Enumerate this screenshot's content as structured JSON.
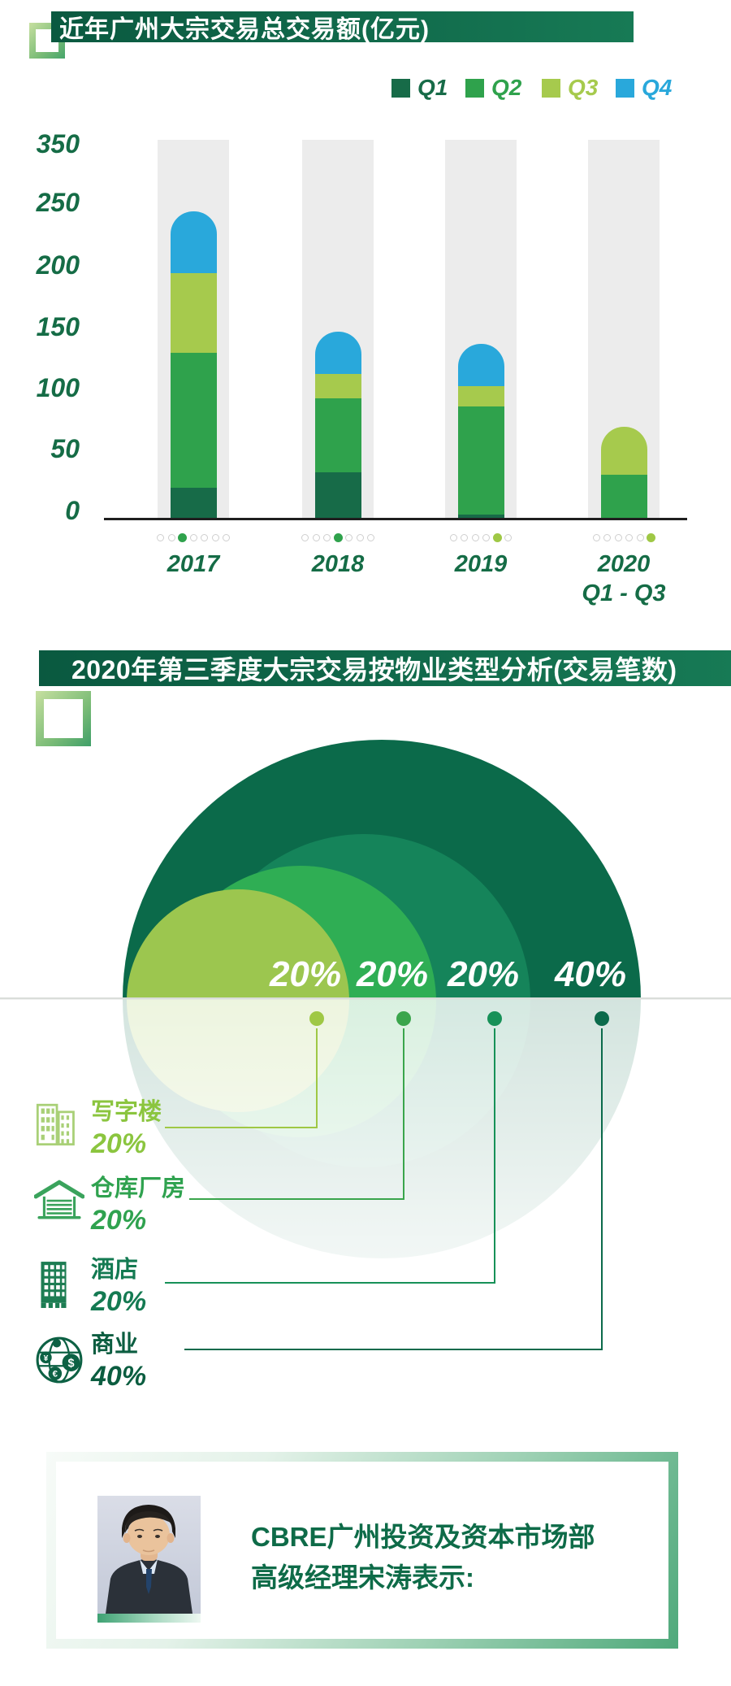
{
  "accent": {
    "dark_green": "#156c46",
    "banner_green": "#0f6a4a",
    "axis_black": "#1f1f1f",
    "column_gray": "#ececec"
  },
  "chart_data": [
    {
      "type": "bar",
      "stacked": true,
      "title": "近年广州大宗交易总交易额(亿元)",
      "ylabel": "亿元",
      "ylim": [
        0,
        350
      ],
      "yticks": [
        "350",
        "250",
        "200",
        "150",
        "100",
        "50",
        "0"
      ],
      "categories": [
        "2017",
        "2018",
        "2019",
        "2020"
      ],
      "category_sublabels": [
        "",
        "",
        "",
        "Q1 - Q3"
      ],
      "legend_position": "top-right",
      "series": [
        {
          "name": "Q1",
          "color": "#176b48",
          "values": [
            25,
            38,
            3,
            0
          ]
        },
        {
          "name": "Q2",
          "color": "#2fa24c",
          "values": [
            110,
            60,
            88,
            36
          ]
        },
        {
          "name": "Q3",
          "color": "#a6ca4d",
          "values": [
            65,
            20,
            17,
            39
          ]
        },
        {
          "name": "Q4",
          "color": "#29a8db",
          "values": [
            50,
            34,
            34,
            0
          ]
        }
      ],
      "totals_approx": [
        250,
        152,
        142,
        75
      ],
      "marker_dots": [
        {
          "count": 7,
          "filled": 3,
          "color": "#2fa24c"
        },
        {
          "count": 7,
          "filled": 4,
          "color": "#2fa24c"
        },
        {
          "count": 6,
          "filled": 5,
          "color": "#9fc845"
        },
        {
          "count": 6,
          "filled": 6,
          "color": "#9fc845"
        }
      ]
    },
    {
      "type": "concentric-circles",
      "title": "2020年第三季度大宗交易按物业类型分析(交易笔数)",
      "categories": [
        {
          "label": "写字楼",
          "value_pct": 20,
          "pct_label": "20%",
          "color": "#8bc53f",
          "dot_color": "#9fc845",
          "ring_color": "#9cc64f"
        },
        {
          "label": "仓库厂房",
          "value_pct": 20,
          "pct_label": "20%",
          "color": "#2fa24f",
          "dot_color": "#3aa54c",
          "ring_color": "#2fae54"
        },
        {
          "label": "酒店",
          "value_pct": 20,
          "pct_label": "20%",
          "color": "#147a52",
          "dot_color": "#179158",
          "ring_color": "#15845a"
        },
        {
          "label": "商业",
          "value_pct": 40,
          "pct_label": "40%",
          "color": "#0b5d40",
          "dot_color": "#0b6a4b",
          "ring_color": "#0b6a4a"
        }
      ]
    }
  ],
  "quote": {
    "line1": "CBRE广州投资及资本市场部",
    "line2": "高级经理宋涛表示:"
  }
}
